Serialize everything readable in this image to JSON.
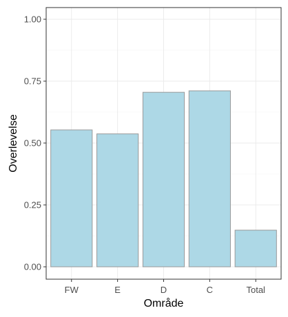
{
  "chart_data": {
    "type": "bar",
    "categories": [
      "FW",
      "E",
      "D",
      "C",
      "Total"
    ],
    "values": [
      0.553,
      0.537,
      0.705,
      0.711,
      0.148
    ],
    "xlabel": "Område",
    "ylabel": "Overlevelse",
    "ylim": [
      0,
      1.05
    ],
    "yticks": [
      0.0,
      0.25,
      0.5,
      0.75,
      1.0
    ],
    "ytick_labels": [
      "0.00",
      "0.25",
      "0.50",
      "0.75",
      "1.00"
    ],
    "grid": true,
    "bar_fill": "#add8e6",
    "bar_stroke": "#999999",
    "panel_border": "#333333",
    "grid_color": "#ebebeb"
  }
}
